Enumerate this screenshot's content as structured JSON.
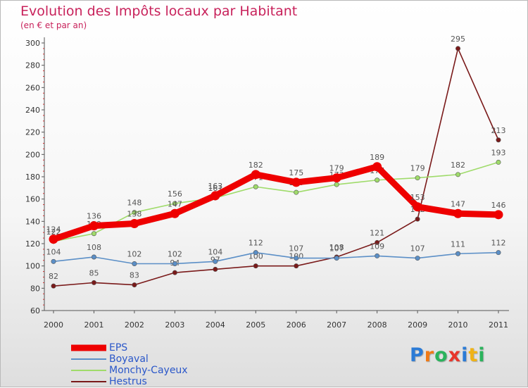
{
  "chart_data": {
    "type": "line",
    "title": "Evolution des Impôts locaux par Habitant",
    "subtitle": "(en € et par an)",
    "xlabel": "",
    "ylabel": "",
    "ylim": [
      60,
      300
    ],
    "yticks": [
      60,
      80,
      100,
      120,
      140,
      160,
      180,
      200,
      220,
      240,
      260,
      280,
      300
    ],
    "x": [
      "2000",
      "2001",
      "2002",
      "2003",
      "2004",
      "2005",
      "2006",
      "2007",
      "2008",
      "2009",
      "2010",
      "2011"
    ],
    "grid": false,
    "legend_position": "bottom-left",
    "series": [
      {
        "name": "Hestrus",
        "color": "#7a1a1a",
        "values": [
          82,
          85,
          83,
          94,
          97,
          100,
          100,
          108,
          121,
          142,
          295,
          213
        ]
      },
      {
        "name": "Monchy-Cayeux",
        "color": "#9fdb6a",
        "values": [
          122,
          129,
          148,
          156,
          161,
          171,
          166,
          173,
          177,
          179,
          182,
          193
        ]
      },
      {
        "name": "Boyaval",
        "color": "#5b8fc7",
        "values": [
          104,
          108,
          102,
          102,
          104,
          112,
          107,
          107,
          109,
          107,
          111,
          112
        ]
      },
      {
        "name": "EPS",
        "color": "#ee0000",
        "values": [
          124,
          136,
          138,
          147,
          163,
          182,
          175,
          179,
          189,
          153,
          147,
          146
        ]
      }
    ],
    "legend": [
      "EPS",
      "Boyaval",
      "Monchy-Cayeux",
      "Hestrus"
    ]
  },
  "brand": {
    "letters": [
      "P",
      "r",
      "o",
      "x",
      "i",
      "t",
      "i"
    ],
    "colors": [
      "#2b7bd6",
      "#f07a16",
      "#2bb35c",
      "#e8352b",
      "#2b7bd6",
      "#f0b316",
      "#2bb35c"
    ]
  }
}
